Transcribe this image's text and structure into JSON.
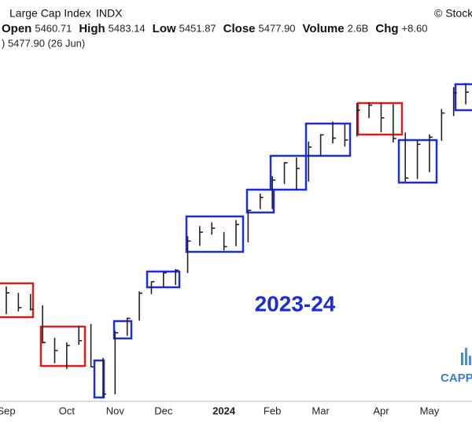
{
  "chart_data": {
    "type": "hlc",
    "title": "Large Cap Index",
    "symbol": "INDX",
    "source": "© Stock",
    "stats": [
      {
        "label": "Open",
        "value": "5460.71"
      },
      {
        "label": "High",
        "value": "5483.14"
      },
      {
        "label": "Low",
        "value": "5451.87"
      },
      {
        "label": "Close",
        "value": "5477.90"
      },
      {
        "label": "Volume",
        "value": "2.6B"
      },
      {
        "label": "Chg",
        "value": "+8.60"
      }
    ],
    "legend_text": ") 5477.90 (26 Jun)",
    "watermark": "2023-24",
    "logo": "CAPP",
    "color": "#222222",
    "categories": [
      "Sep",
      null,
      null,
      null,
      null,
      "Oct",
      null,
      null,
      null,
      "Nov",
      null,
      null,
      null,
      "Dec",
      null,
      null,
      null,
      null,
      "2024",
      null,
      null,
      null,
      "Feb",
      null,
      null,
      null,
      "Mar",
      null,
      null,
      null,
      null,
      "Apr",
      null,
      null,
      null,
      "May",
      null,
      null,
      null
    ],
    "high": [
      4541,
      4515,
      4511,
      4466,
      4338,
      4320,
      4385,
      4393,
      4259,
      4366,
      4418,
      4521,
      4560,
      4595,
      4609,
      4738,
      4778,
      4793,
      4754,
      4802,
      4842,
      4906,
      4975,
      5030,
      5048,
      5111,
      5140,
      5189,
      5179,
      5262,
      5265,
      5264,
      5258,
      5146,
      5114,
      5139,
      5239,
      5325,
      5341
    ],
    "low": [
      4432,
      4442,
      4446,
      4316,
      4238,
      4216,
      4311,
      4223,
      4104,
      4116,
      4346,
      4406,
      4510,
      4537,
      4546,
      4593,
      4700,
      4744,
      4682,
      4699,
      4714,
      4845,
      4845,
      4944,
      4920,
      4953,
      5057,
      5104,
      5091,
      5131,
      5203,
      5147,
      5107,
      4953,
      4963,
      4990,
      5114,
      5211,
      5257
    ],
    "close": [
      4515,
      4457,
      4450,
      4320,
      4288,
      4308,
      4327,
      4224,
      4117,
      4358,
      4415,
      4514,
      4559,
      4594,
      4604,
      4719,
      4754,
      4770,
      4697,
      4784,
      4840,
      4891,
      4959,
      5027,
      5005,
      5089,
      5137,
      5124,
      5117,
      5234,
      5254,
      5204,
      5123,
      4967,
      5100,
      5128,
      5223,
      5303,
      5305
    ],
    "ylim": [
      4088,
      5513
    ]
  }
}
